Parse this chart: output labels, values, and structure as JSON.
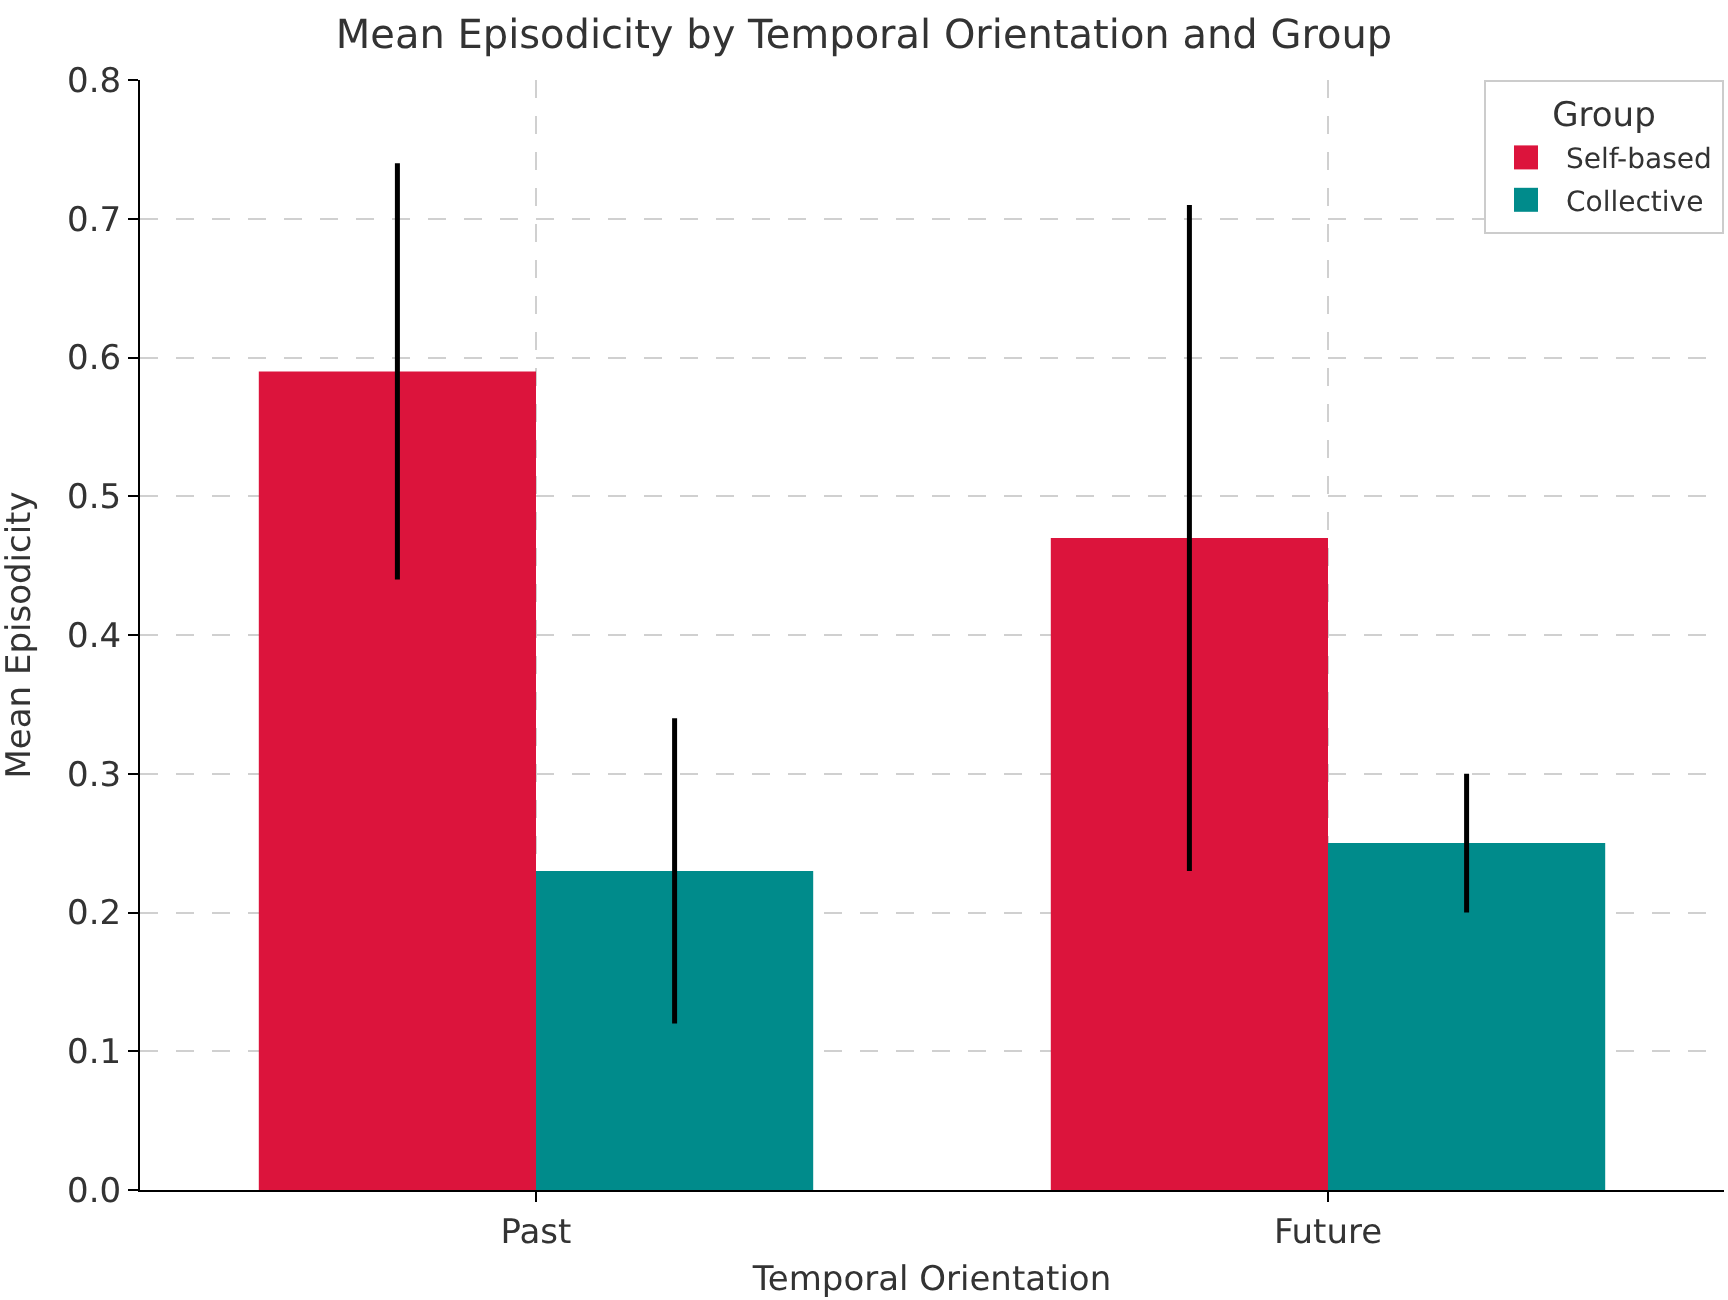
{
  "chart_data": {
    "type": "bar",
    "title": "Mean Episodicity by Temporal Orientation and Group",
    "xlabel": "Temporal Orientation",
    "ylabel": "Mean Episodicity",
    "legend_title": "Group",
    "categories": [
      "Past",
      "Future"
    ],
    "series": [
      {
        "name": "Self-based",
        "color": "#dc143c",
        "values": [
          0.59,
          0.47
        ],
        "errors": [
          0.15,
          0.24
        ]
      },
      {
        "name": "Collective",
        "color": "#008b8b",
        "values": [
          0.23,
          0.25
        ],
        "errors": [
          0.11,
          0.05
        ]
      }
    ],
    "ylim": [
      0,
      0.8
    ],
    "yticks": [
      {
        "value": 0,
        "label": "0.0"
      },
      0.1,
      0.2,
      0.3,
      0.4,
      0.5,
      0.6,
      0.7,
      0.8
    ],
    "grid": true,
    "legend": "top right"
  }
}
